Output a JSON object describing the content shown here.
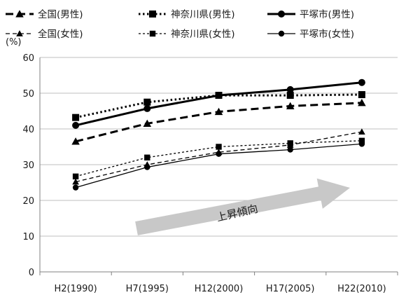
{
  "chart_data": {
    "type": "line",
    "title": "",
    "ylabel": "(%)",
    "xlabel": "",
    "categories": [
      "H2(1990)",
      "H7(1995)",
      "H12(2000)",
      "H17(2005)",
      "H22(2010)"
    ],
    "ylim": [
      0,
      60
    ],
    "yticks": [
      0,
      10,
      20,
      30,
      40,
      50,
      60
    ],
    "grid": "horizontal",
    "legend_position": "top",
    "annotation": "上昇傾向",
    "colors": {
      "line": "#000000",
      "arrow": "#c8c8c8"
    },
    "series": [
      {
        "name": "全国(男性)",
        "values": [
          36.5,
          41.5,
          44.8,
          46.4,
          47.3
        ],
        "style": "dashed-bold",
        "marker": "triangle"
      },
      {
        "name": "神奈川県(男性)",
        "values": [
          43.2,
          47.5,
          49.4,
          49.4,
          49.6
        ],
        "style": "dotted-bold",
        "marker": "square"
      },
      {
        "name": "平塚市(男性)",
        "values": [
          41.0,
          45.7,
          49.4,
          51.0,
          53.0
        ],
        "style": "solid-bold",
        "marker": "circle"
      },
      {
        "name": "全国(女性)",
        "values": [
          25.2,
          30.0,
          33.5,
          35.5,
          39.2
        ],
        "style": "dashed-thin",
        "marker": "triangle"
      },
      {
        "name": "神奈川県(女性)",
        "values": [
          26.7,
          32.0,
          35.0,
          36.0,
          36.7
        ],
        "style": "dotted-thin",
        "marker": "square"
      },
      {
        "name": "平塚市(女性)",
        "values": [
          23.6,
          29.3,
          33.0,
          34.2,
          35.8
        ],
        "style": "solid-thin",
        "marker": "circle"
      }
    ]
  }
}
